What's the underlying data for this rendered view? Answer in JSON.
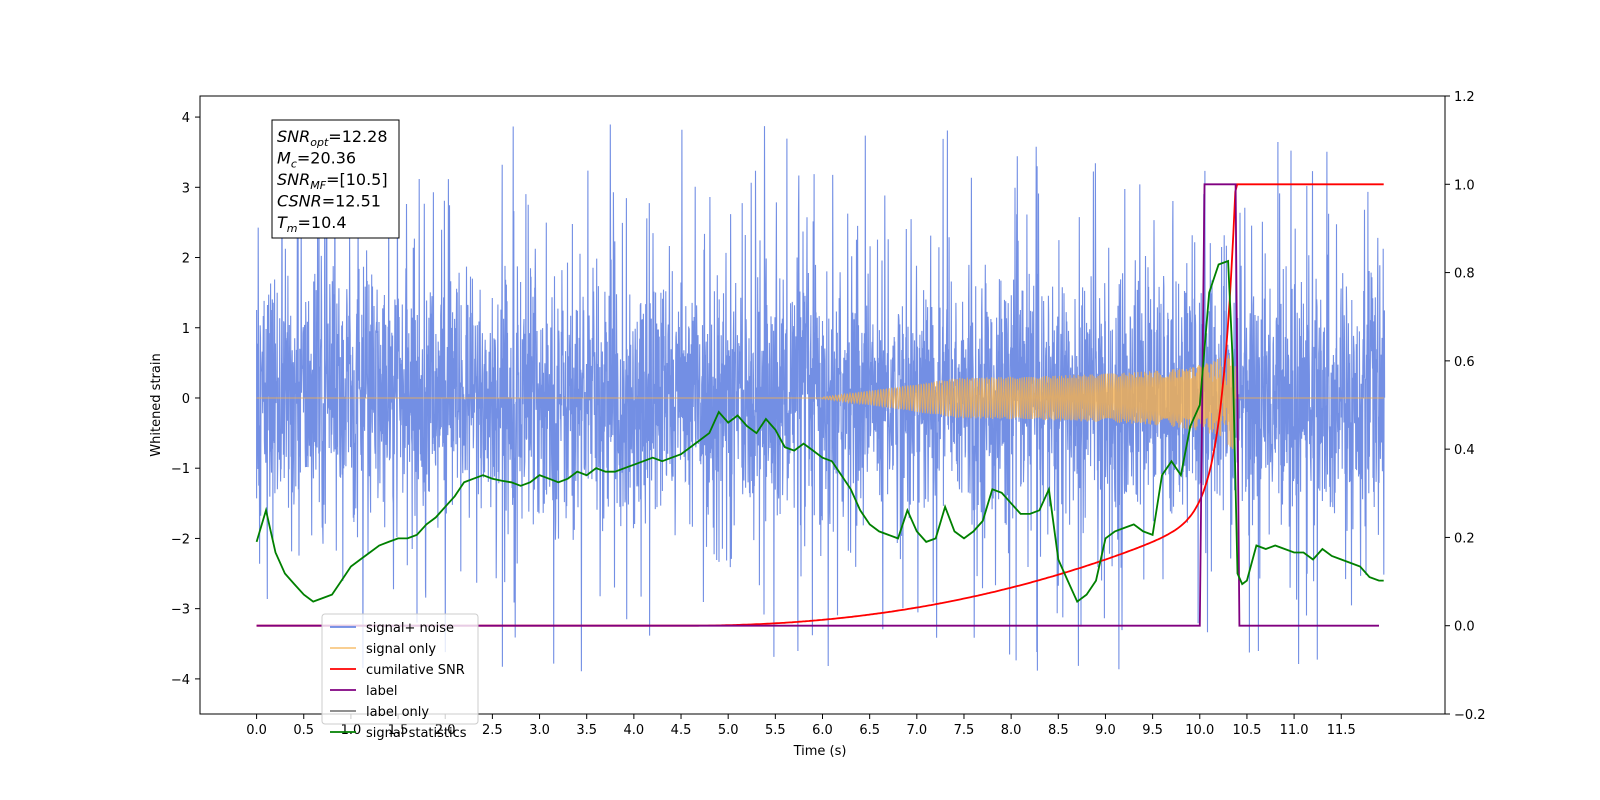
{
  "chart_data": {
    "type": "line",
    "xlabel": "Time (s)",
    "ylabel_left": "Whitened strain",
    "ylabel_right": "",
    "xlim": [
      -0.6,
      12.6
    ],
    "ylim_left": [
      -4.5,
      4.3
    ],
    "ylim_right": [
      -0.2,
      1.2
    ],
    "grid": false,
    "x_ticks": [
      "0.0",
      "0.5",
      "1.0",
      "1.5",
      "2.0",
      "2.5",
      "3.0",
      "3.5",
      "4.0",
      "4.5",
      "5.0",
      "5.5",
      "6.0",
      "6.5",
      "7.0",
      "7.5",
      "8.0",
      "8.5",
      "9.0",
      "9.5",
      "10.0",
      "10.5",
      "11.0",
      "11.5"
    ],
    "y_ticks_left": [
      "−4",
      "−3",
      "−2",
      "−1",
      "0",
      "1",
      "2",
      "3",
      "4"
    ],
    "y_ticks_right": [
      "−0.2",
      "0.0",
      "0.2",
      "0.4",
      "0.6",
      "0.8",
      "1.0",
      "1.2"
    ],
    "info_box": [
      {
        "base": "SNR",
        "sub": "opt",
        "rest": "=12.28"
      },
      {
        "base": "M",
        "sub": "c",
        "rest": "=20.36"
      },
      {
        "base": "SNR",
        "sub": "MF",
        "rest": "=[10.5]"
      },
      {
        "base": "CSNR",
        "sub": "",
        "rest": "=12.51"
      },
      {
        "base": "T",
        "sub": "m",
        "rest": "=10.4"
      }
    ],
    "legend_position": "lower-left",
    "series": [
      {
        "name": "signal+ noise",
        "color": "#6b89e3",
        "axis": "left",
        "description": "noise band approx ±1.6 with spikes up to about 3.9 and down to about -4.1",
        "duration": [
          0,
          12
        ]
      },
      {
        "name": "signal only",
        "color": "#f5b04f",
        "axis": "left",
        "description": "chirp, amplitude 0 until ~6.0 s, grows to ~1 at 10.35 s, then 0",
        "chirp_start": 6.0,
        "chirp_end": 10.38,
        "peak_amplitude": 1.0
      },
      {
        "name": "cumilative SNR",
        "color": "#ff0000",
        "axis": "right",
        "x": [
          0,
          4.5,
          5.0,
          5.5,
          6.0,
          6.5,
          7.0,
          7.5,
          8.0,
          8.5,
          9.0,
          9.5,
          9.8,
          10.0,
          10.1,
          10.2,
          10.3,
          10.38,
          10.4,
          11.95
        ],
        "values": [
          0.0,
          0.0,
          0.002,
          0.006,
          0.014,
          0.03,
          0.05,
          0.07,
          0.09,
          0.115,
          0.15,
          0.2,
          0.25,
          0.31,
          0.36,
          0.43,
          0.58,
          1.0,
          1.0,
          1.0
        ]
      },
      {
        "name": "label",
        "color": "#800080",
        "axis": "right",
        "x": [
          0,
          10.0,
          10.05,
          10.38,
          10.42,
          11.9
        ],
        "values": [
          0,
          0,
          1,
          1,
          0,
          0
        ]
      },
      {
        "name": "label only",
        "color": "#808080",
        "axis": "right",
        "hidden_in_plot": true,
        "x": [],
        "values": []
      },
      {
        "name": "signal statistics",
        "color": "#008000",
        "axis": "left",
        "x": [
          0.0,
          0.1,
          0.2,
          0.3,
          0.4,
          0.5,
          0.6,
          0.7,
          0.8,
          0.9,
          1.0,
          1.1,
          1.2,
          1.3,
          1.4,
          1.5,
          1.6,
          1.7,
          1.8,
          1.9,
          2.0,
          2.1,
          2.2,
          2.3,
          2.4,
          2.5,
          2.6,
          2.7,
          2.8,
          2.9,
          3.0,
          3.1,
          3.2,
          3.3,
          3.4,
          3.5,
          3.6,
          3.7,
          3.8,
          3.9,
          4.0,
          4.1,
          4.2,
          4.3,
          4.4,
          4.5,
          4.6,
          4.7,
          4.8,
          4.9,
          5.0,
          5.1,
          5.2,
          5.3,
          5.4,
          5.5,
          5.6,
          5.7,
          5.8,
          5.9,
          6.0,
          6.1,
          6.2,
          6.3,
          6.4,
          6.5,
          6.6,
          6.7,
          6.8,
          6.9,
          7.0,
          7.1,
          7.2,
          7.3,
          7.4,
          7.5,
          7.6,
          7.7,
          7.8,
          7.9,
          8.0,
          8.1,
          8.2,
          8.3,
          8.4,
          8.5,
          8.6,
          8.7,
          8.8,
          8.9,
          9.0,
          9.1,
          9.2,
          9.3,
          9.4,
          9.5,
          9.6,
          9.7,
          9.8,
          9.9,
          10.0,
          10.1,
          10.2,
          10.3,
          10.35,
          10.4,
          10.45,
          10.5,
          10.6,
          10.7,
          10.8,
          10.9,
          11.0,
          11.1,
          11.2,
          11.3,
          11.4,
          11.5,
          11.6,
          11.7,
          11.8,
          11.9,
          11.95
        ],
        "values": [
          -2.05,
          -1.6,
          -2.2,
          -2.5,
          -2.65,
          -2.8,
          -2.9,
          -2.85,
          -2.8,
          -2.6,
          -2.4,
          -2.3,
          -2.2,
          -2.1,
          -2.05,
          -2.0,
          -2.0,
          -1.95,
          -1.8,
          -1.7,
          -1.55,
          -1.4,
          -1.2,
          -1.15,
          -1.1,
          -1.15,
          -1.18,
          -1.2,
          -1.25,
          -1.2,
          -1.1,
          -1.15,
          -1.2,
          -1.15,
          -1.05,
          -1.1,
          -1.0,
          -1.05,
          -1.05,
          -1.0,
          -0.95,
          -0.9,
          -0.85,
          -0.9,
          -0.85,
          -0.8,
          -0.7,
          -0.6,
          -0.5,
          -0.2,
          -0.35,
          -0.25,
          -0.4,
          -0.5,
          -0.3,
          -0.45,
          -0.7,
          -0.75,
          -0.65,
          -0.75,
          -0.85,
          -0.9,
          -1.1,
          -1.3,
          -1.6,
          -1.8,
          -1.9,
          -1.95,
          -2.0,
          -1.6,
          -1.9,
          -2.05,
          -2.0,
          -1.55,
          -1.9,
          -2.0,
          -1.9,
          -1.75,
          -1.3,
          -1.35,
          -1.5,
          -1.65,
          -1.65,
          -1.6,
          -1.3,
          -2.3,
          -2.6,
          -2.9,
          -2.8,
          -2.6,
          -2.0,
          -1.9,
          -1.85,
          -1.8,
          -1.9,
          -1.95,
          -1.1,
          -0.9,
          -1.1,
          -0.4,
          -0.1,
          1.5,
          1.9,
          1.95,
          0.5,
          -2.5,
          -2.65,
          -2.6,
          -2.1,
          -2.15,
          -2.1,
          -2.15,
          -2.2,
          -2.2,
          -2.3,
          -2.15,
          -2.25,
          -2.3,
          -2.35,
          -2.4,
          -2.55,
          -2.6,
          -2.6
        ]
      }
    ]
  }
}
